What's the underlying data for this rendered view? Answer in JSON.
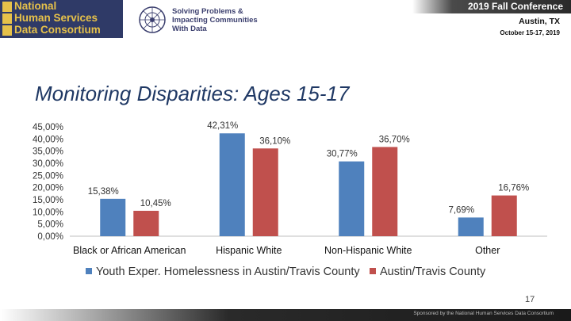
{
  "header": {
    "org_lines": [
      "National",
      "Human Services",
      "Data Consortium"
    ],
    "tagline_lines": [
      "Solving Problems &",
      "Impacting Communities",
      "With Data"
    ],
    "conference_title": "2019 Fall Conference",
    "conference_city": "Austin, TX",
    "conference_dates": "October 15-17, 2019",
    "colors": {
      "brand_navy": "#2f3a67",
      "brand_gold": "#e6c14a"
    }
  },
  "slide": {
    "title": "Monitoring Disparities: Ages 15-17",
    "page_number": "17",
    "footer": "Sponsored by the National Human Services Data Consortium"
  },
  "chart_data": {
    "type": "bar",
    "categories": [
      "Black or African American",
      "Hispanic White",
      "Non-Hispanic White",
      "Other"
    ],
    "series": [
      {
        "name": "Youth Exper. Homelessness in Austin/Travis County",
        "color": "#4f81bd",
        "values": [
          15.38,
          42.31,
          30.77,
          7.69
        ],
        "labels": [
          "15,38%",
          "42,31%",
          "30,77%",
          "7,69%"
        ]
      },
      {
        "name": "Austin/Travis County",
        "color": "#c0504d",
        "values": [
          10.45,
          36.1,
          36.7,
          16.76
        ],
        "labels": [
          "10,45%",
          "36,10%",
          "36,70%",
          "16,76%"
        ]
      }
    ],
    "yticks": [
      "0,00%",
      "5,00%",
      "10,00%",
      "15,00%",
      "20,00%",
      "25,00%",
      "30,00%",
      "35,00%",
      "40,00%",
      "45,00%"
    ],
    "ylim": [
      0,
      45
    ],
    "grid": false,
    "legend_position": "bottom"
  }
}
